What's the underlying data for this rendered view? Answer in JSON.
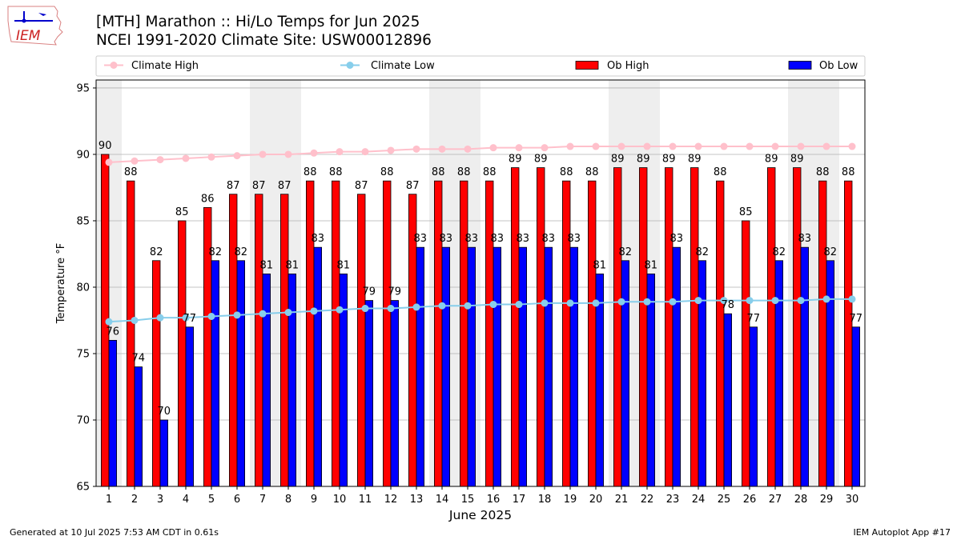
{
  "header": {
    "title_line1": "[MTH] Marathon :: Hi/Lo Temps for Jun 2025",
    "title_line2": "NCEI 1991-2020 Climate Site: USW00012896",
    "logo_text": "IEM"
  },
  "footer": {
    "generated": "Generated at 10 Jul 2025 7:53 AM CDT in 0.61s",
    "app": "IEM Autoplot App #17"
  },
  "colors": {
    "climate_high": "#ffc0cb",
    "climate_low": "#87ceeb",
    "ob_high": "#ff0000",
    "ob_low": "#0000ff",
    "weekend_shade": "#eeeeee",
    "grid": "#b0b0b0"
  },
  "chart_data": {
    "type": "bar",
    "xlabel": "June 2025",
    "ylabel": "Temperature °F",
    "ylim": [
      65,
      95.6
    ],
    "yticks": [
      65,
      70,
      75,
      80,
      85,
      90,
      95
    ],
    "grid": "horizontal",
    "legend_position": "top",
    "categories": [
      "1",
      "2",
      "3",
      "4",
      "5",
      "6",
      "7",
      "8",
      "9",
      "10",
      "11",
      "12",
      "13",
      "14",
      "15",
      "16",
      "17",
      "18",
      "19",
      "20",
      "21",
      "22",
      "23",
      "24",
      "25",
      "26",
      "27",
      "28",
      "29",
      "30"
    ],
    "weekend_days": [
      1,
      7,
      8,
      14,
      15,
      21,
      22,
      28,
      29
    ],
    "series": [
      {
        "name": "Climate High",
        "kind": "line",
        "values": [
          89.4,
          89.5,
          89.6,
          89.7,
          89.8,
          89.9,
          90.0,
          90.0,
          90.1,
          90.2,
          90.2,
          90.3,
          90.4,
          90.4,
          90.4,
          90.5,
          90.5,
          90.5,
          90.6,
          90.6,
          90.6,
          90.6,
          90.6,
          90.6,
          90.6,
          90.6,
          90.6,
          90.6,
          90.6,
          90.6
        ]
      },
      {
        "name": "Climate Low",
        "kind": "line",
        "values": [
          77.4,
          77.5,
          77.7,
          77.7,
          77.8,
          77.9,
          78.0,
          78.1,
          78.2,
          78.3,
          78.4,
          78.4,
          78.5,
          78.6,
          78.6,
          78.7,
          78.7,
          78.8,
          78.8,
          78.8,
          78.9,
          78.9,
          78.9,
          79.0,
          79.0,
          79.0,
          79.0,
          79.0,
          79.1,
          79.1
        ]
      },
      {
        "name": "Ob High",
        "kind": "bar",
        "values": [
          90,
          88,
          82,
          85,
          86,
          87,
          87,
          87,
          88,
          88,
          87,
          88,
          87,
          88,
          88,
          88,
          89,
          89,
          88,
          88,
          89,
          89,
          89,
          89,
          88,
          85,
          89,
          89,
          88,
          88
        ]
      },
      {
        "name": "Ob Low",
        "kind": "bar",
        "values": [
          76,
          74,
          70,
          77,
          82,
          82,
          81,
          81,
          83,
          81,
          79,
          79,
          83,
          83,
          83,
          83,
          83,
          83,
          83,
          81,
          82,
          81,
          83,
          82,
          78,
          77,
          82,
          83,
          82,
          77
        ]
      }
    ]
  }
}
